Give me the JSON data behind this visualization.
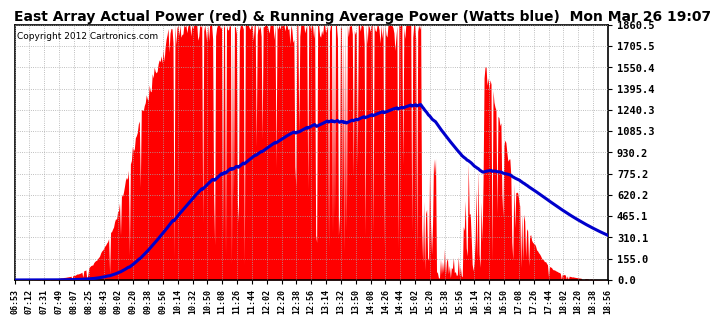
{
  "title": "East Array Actual Power (red) & Running Average Power (Watts blue)  Mon Mar 26 19:07",
  "copyright": "Copyright 2012 Cartronics.com",
  "yticks": [
    0.0,
    155.0,
    310.1,
    465.1,
    620.2,
    775.2,
    930.2,
    1085.3,
    1240.3,
    1395.4,
    1550.4,
    1705.5,
    1860.5
  ],
  "ymax": 1860.5,
  "ymin": 0.0,
  "background_color": "#ffffff",
  "plot_bg_color": "#ffffff",
  "grid_color": "#aaaaaa",
  "fill_color": "#ff0000",
  "avg_line_color": "#0000cc",
  "title_fontsize": 10,
  "xtick_labels": [
    "06:53",
    "07:12",
    "07:31",
    "07:49",
    "08:07",
    "08:25",
    "08:43",
    "09:02",
    "09:20",
    "09:38",
    "09:56",
    "10:14",
    "10:32",
    "10:50",
    "11:08",
    "11:26",
    "11:44",
    "12:02",
    "12:20",
    "12:38",
    "12:56",
    "13:14",
    "13:32",
    "13:50",
    "14:08",
    "14:26",
    "14:44",
    "15:02",
    "15:20",
    "15:38",
    "15:56",
    "16:14",
    "16:32",
    "16:50",
    "17:08",
    "17:26",
    "17:44",
    "18:02",
    "18:20",
    "18:38",
    "18:56"
  ]
}
